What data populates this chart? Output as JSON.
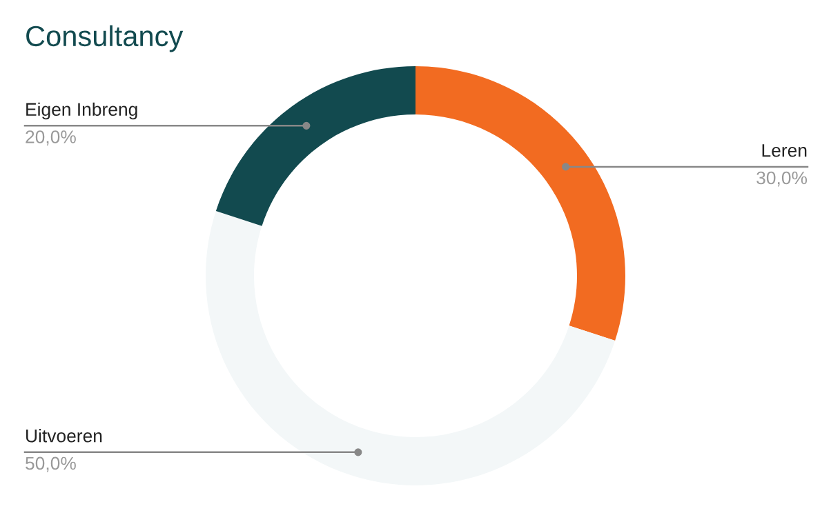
{
  "chart_data": {
    "type": "donut",
    "title": "Consultancy",
    "categories": [
      "Leren",
      "Uitvoeren",
      "Eigen Inbreng"
    ],
    "values": [
      30,
      50,
      20
    ],
    "colors": [
      "#f26b21",
      "#f3f7f8",
      "#124a4f"
    ],
    "value_labels": [
      "30,0%",
      "50,0%",
      "20,0%"
    ],
    "legend": false
  }
}
